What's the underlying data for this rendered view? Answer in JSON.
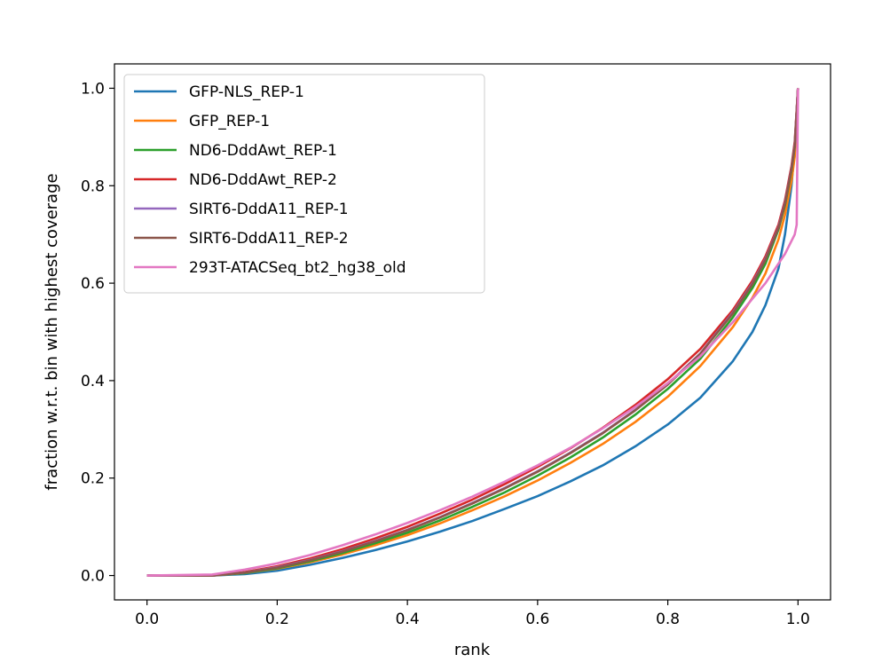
{
  "chart_data": {
    "type": "line",
    "xlabel": "rank",
    "ylabel": "fraction w.r.t. bin with highest coverage",
    "xlim": [
      -0.05,
      1.05
    ],
    "ylim": [
      -0.05,
      1.05
    ],
    "xticks": [
      0.0,
      0.2,
      0.4,
      0.6,
      0.8,
      1.0
    ],
    "xtick_labels": [
      "0.0",
      "0.2",
      "0.4",
      "0.6",
      "0.8",
      "1.0"
    ],
    "yticks": [
      0.0,
      0.2,
      0.4,
      0.6,
      0.8,
      1.0
    ],
    "ytick_labels": [
      "0.0",
      "0.2",
      "0.4",
      "0.6",
      "0.8",
      "1.0"
    ],
    "grid": false,
    "legend_position": "top-left",
    "series": [
      {
        "name": "GFP-NLS_REP-1",
        "color": "#1f77b4",
        "x": [
          0.0,
          0.1,
          0.15,
          0.2,
          0.25,
          0.3,
          0.35,
          0.4,
          0.45,
          0.5,
          0.55,
          0.6,
          0.65,
          0.7,
          0.75,
          0.8,
          0.85,
          0.9,
          0.93,
          0.95,
          0.97,
          0.98,
          0.99,
          0.995,
          1.0
        ],
        "y": [
          0.0,
          0.0,
          0.003,
          0.01,
          0.022,
          0.036,
          0.052,
          0.07,
          0.09,
          0.112,
          0.137,
          0.163,
          0.193,
          0.226,
          0.265,
          0.31,
          0.365,
          0.44,
          0.5,
          0.555,
          0.63,
          0.7,
          0.8,
          0.88,
          1.0
        ]
      },
      {
        "name": "GFP_REP-1",
        "color": "#ff7f0e",
        "x": [
          0.0,
          0.1,
          0.15,
          0.2,
          0.25,
          0.3,
          0.35,
          0.4,
          0.45,
          0.5,
          0.55,
          0.6,
          0.65,
          0.7,
          0.75,
          0.8,
          0.85,
          0.9,
          0.93,
          0.95,
          0.97,
          0.98,
          0.99,
          0.995,
          1.0
        ],
        "y": [
          0.0,
          0.0,
          0.005,
          0.014,
          0.027,
          0.043,
          0.062,
          0.083,
          0.107,
          0.134,
          0.163,
          0.195,
          0.231,
          0.27,
          0.315,
          0.367,
          0.43,
          0.51,
          0.57,
          0.62,
          0.69,
          0.74,
          0.81,
          0.86,
          1.0
        ]
      },
      {
        "name": "ND6-DddAwt_REP-1",
        "color": "#2ca02c",
        "x": [
          0.0,
          0.1,
          0.15,
          0.2,
          0.25,
          0.3,
          0.35,
          0.4,
          0.45,
          0.5,
          0.55,
          0.6,
          0.65,
          0.7,
          0.75,
          0.8,
          0.85,
          0.9,
          0.93,
          0.95,
          0.97,
          0.98,
          0.99,
          0.995,
          1.0
        ],
        "y": [
          0.0,
          0.0,
          0.005,
          0.015,
          0.029,
          0.046,
          0.066,
          0.088,
          0.113,
          0.141,
          0.171,
          0.205,
          0.242,
          0.283,
          0.33,
          0.383,
          0.445,
          0.53,
          0.59,
          0.64,
          0.71,
          0.76,
          0.83,
          0.88,
          1.0
        ]
      },
      {
        "name": "ND6-DddAwt_REP-2",
        "color": "#d62728",
        "x": [
          0.0,
          0.1,
          0.15,
          0.2,
          0.25,
          0.3,
          0.35,
          0.4,
          0.45,
          0.5,
          0.55,
          0.6,
          0.65,
          0.7,
          0.75,
          0.8,
          0.85,
          0.9,
          0.93,
          0.95,
          0.97,
          0.98,
          0.99,
          0.995,
          1.0
        ],
        "y": [
          0.0,
          0.0,
          0.007,
          0.019,
          0.035,
          0.054,
          0.076,
          0.1,
          0.127,
          0.156,
          0.188,
          0.223,
          0.261,
          0.303,
          0.35,
          0.403,
          0.465,
          0.545,
          0.605,
          0.655,
          0.72,
          0.77,
          0.84,
          0.89,
          1.0
        ]
      },
      {
        "name": "SIRT6-DddA11_REP-1",
        "color": "#9467bd",
        "x": [
          0.0,
          0.1,
          0.15,
          0.2,
          0.25,
          0.3,
          0.35,
          0.4,
          0.45,
          0.5,
          0.55,
          0.6,
          0.65,
          0.7,
          0.75,
          0.8,
          0.85,
          0.9,
          0.93,
          0.95,
          0.97,
          0.98,
          0.99,
          0.995,
          1.0
        ],
        "y": [
          0.0,
          0.0,
          0.006,
          0.017,
          0.032,
          0.05,
          0.071,
          0.094,
          0.12,
          0.149,
          0.18,
          0.214,
          0.252,
          0.293,
          0.34,
          0.393,
          0.456,
          0.54,
          0.6,
          0.65,
          0.715,
          0.765,
          0.835,
          0.885,
          1.0
        ]
      },
      {
        "name": "SIRT6-DddA11_REP-2",
        "color": "#8c564b",
        "x": [
          0.0,
          0.1,
          0.15,
          0.2,
          0.25,
          0.3,
          0.35,
          0.4,
          0.45,
          0.5,
          0.55,
          0.6,
          0.65,
          0.7,
          0.75,
          0.8,
          0.85,
          0.9,
          0.93,
          0.95,
          0.97,
          0.98,
          0.99,
          0.995,
          1.0
        ],
        "y": [
          0.0,
          0.0,
          0.006,
          0.016,
          0.031,
          0.049,
          0.07,
          0.093,
          0.119,
          0.148,
          0.179,
          0.213,
          0.251,
          0.292,
          0.339,
          0.392,
          0.455,
          0.538,
          0.598,
          0.648,
          0.713,
          0.763,
          0.833,
          0.883,
          1.0
        ]
      },
      {
        "name": "293T-ATACSeq_bt2_hg38_old",
        "color": "#e377c2",
        "x": [
          0.0,
          0.1,
          0.12,
          0.15,
          0.2,
          0.25,
          0.3,
          0.35,
          0.4,
          0.45,
          0.5,
          0.55,
          0.6,
          0.65,
          0.7,
          0.75,
          0.8,
          0.85,
          0.9,
          0.95,
          0.98,
          0.995,
          0.998,
          1.0
        ],
        "y": [
          0.0,
          0.002,
          0.006,
          0.012,
          0.025,
          0.042,
          0.062,
          0.084,
          0.108,
          0.134,
          0.162,
          0.193,
          0.226,
          0.262,
          0.302,
          0.346,
          0.395,
          0.45,
          0.52,
          0.6,
          0.66,
          0.7,
          0.72,
          1.0
        ]
      }
    ]
  }
}
